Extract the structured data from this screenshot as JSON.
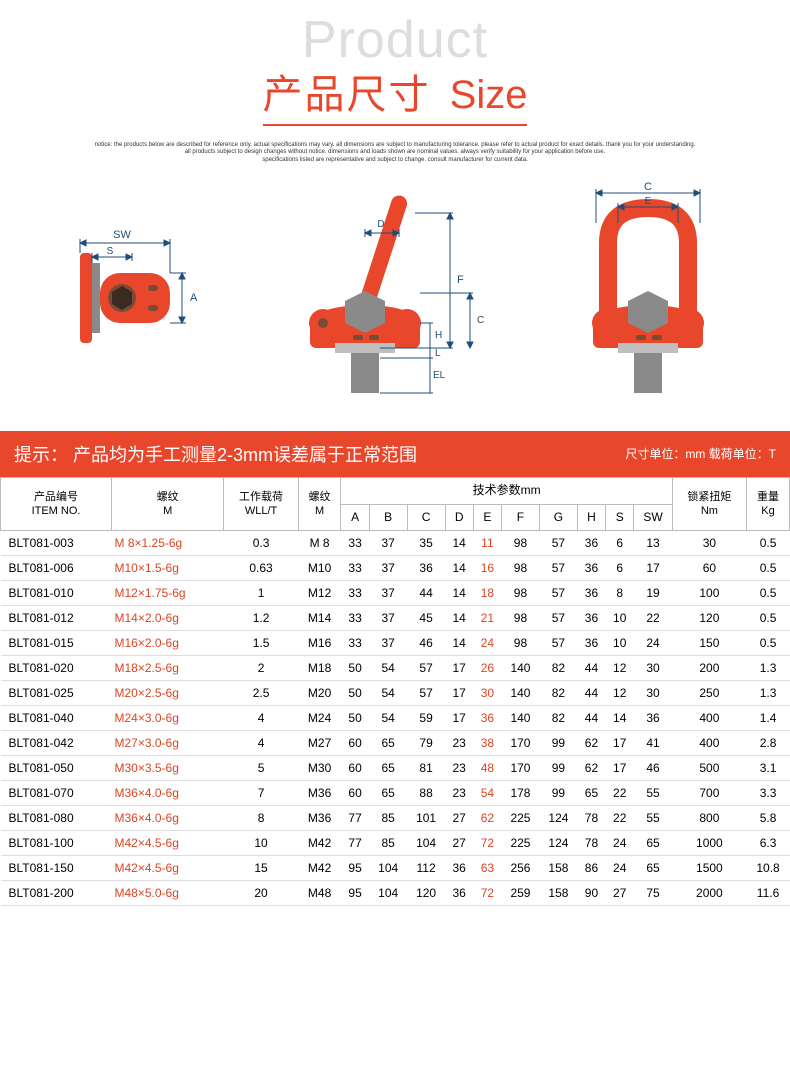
{
  "header": {
    "product_word": "Product",
    "title_cn": "产品尺寸",
    "title_en": "Size"
  },
  "desc": [
    "notice: the products below are described for reference only. actual specifications may vary. all dimensions are subject to manufacturing tolerance. please refer to actual product for exact details. thank you for your understanding.",
    "all products subject to design changes without notice. dimensions and loads shown are nominal values. always verify suitability for your application before use.",
    "specifications listed are representative and subject to change. consult manufacturer for current data."
  ],
  "dim_labels": {
    "sw": "SW",
    "s": "S",
    "a": "A",
    "d": "D",
    "f": "F",
    "h": "H",
    "l": "L",
    "el": "EL",
    "c_upper": "C",
    "c_lower": "C",
    "e": "E"
  },
  "notice": {
    "tip_label": "提示：",
    "text": "产品均为手工测量2-3mm误差属于正常范围",
    "units": "尺寸单位：mm 载荷单位：T"
  },
  "columns": {
    "itemno": {
      "cn": "产品编号",
      "en": "ITEM NO."
    },
    "thread": {
      "cn": "螺纹",
      "en": "M"
    },
    "wll": {
      "cn": "工作载荷",
      "en": "WLL/T"
    },
    "m2": {
      "cn": "螺纹",
      "en": "M"
    },
    "tech_group": "技术参数mm",
    "tech": [
      "A",
      "B",
      "C",
      "D",
      "E",
      "F",
      "G",
      "H",
      "S",
      "SW"
    ],
    "torque": {
      "cn": "锁紧扭矩",
      "en": "Nm"
    },
    "weight": {
      "cn": "重量",
      "en": "Kg"
    }
  },
  "rows": [
    {
      "sep": true,
      "item": "BLT081-003",
      "thread": "M 8×1.25-6g",
      "wll": "0.3",
      "m": "M 8",
      "a": "33",
      "b": "37",
      "c": "35",
      "d": "14",
      "e": "11",
      "f": "98",
      "g": "57",
      "h": "36",
      "s": "6",
      "sw": "13",
      "nm": "30",
      "kg": "0.5"
    },
    {
      "sep": false,
      "item": "BLT081-006",
      "thread": "M10×1.5-6g",
      "wll": "0.63",
      "m": "M10",
      "a": "33",
      "b": "37",
      "c": "36",
      "d": "14",
      "e": "16",
      "f": "98",
      "g": "57",
      "h": "36",
      "s": "6",
      "sw": "17",
      "nm": "60",
      "kg": "0.5"
    },
    {
      "sep": false,
      "item": "BLT081-010",
      "thread": "M12×1.75-6g",
      "wll": "1",
      "m": "M12",
      "a": "33",
      "b": "37",
      "c": "44",
      "d": "14",
      "e": "18",
      "f": "98",
      "g": "57",
      "h": "36",
      "s": "8",
      "sw": "19",
      "nm": "100",
      "kg": "0.5"
    },
    {
      "sep": false,
      "item": "BLT081-012",
      "thread": "M14×2.0-6g",
      "wll": "1.2",
      "m": "M14",
      "a": "33",
      "b": "37",
      "c": "45",
      "d": "14",
      "e": "21",
      "f": "98",
      "g": "57",
      "h": "36",
      "s": "10",
      "sw": "22",
      "nm": "120",
      "kg": "0.5"
    },
    {
      "sep": true,
      "item": "BLT081-015",
      "thread": "M16×2.0-6g",
      "wll": "1.5",
      "m": "M16",
      "a": "33",
      "b": "37",
      "c": "46",
      "d": "14",
      "e": "24",
      "f": "98",
      "g": "57",
      "h": "36",
      "s": "10",
      "sw": "24",
      "nm": "150",
      "kg": "0.5"
    },
    {
      "sep": false,
      "item": "BLT081-020",
      "thread": "M18×2.5-6g",
      "wll": "2",
      "m": "M18",
      "a": "50",
      "b": "54",
      "c": "57",
      "d": "17",
      "e": "26",
      "f": "140",
      "g": "82",
      "h": "44",
      "s": "12",
      "sw": "30",
      "nm": "200",
      "kg": "1.3"
    },
    {
      "sep": false,
      "item": "BLT081-025",
      "thread": "M20×2.5-6g",
      "wll": "2.5",
      "m": "M20",
      "a": "50",
      "b": "54",
      "c": "57",
      "d": "17",
      "e": "30",
      "f": "140",
      "g": "82",
      "h": "44",
      "s": "12",
      "sw": "30",
      "nm": "250",
      "kg": "1.3"
    },
    {
      "sep": false,
      "item": "BLT081-040",
      "thread": "M24×3.0-6g",
      "wll": "4",
      "m": "M24",
      "a": "50",
      "b": "54",
      "c": "59",
      "d": "17",
      "e": "36",
      "f": "140",
      "g": "82",
      "h": "44",
      "s": "14",
      "sw": "36",
      "nm": "400",
      "kg": "1.4"
    },
    {
      "sep": true,
      "item": "BLT081-042",
      "thread": "M27×3.0-6g",
      "wll": "4",
      "m": "M27",
      "a": "60",
      "b": "65",
      "c": "79",
      "d": "23",
      "e": "38",
      "f": "170",
      "g": "99",
      "h": "62",
      "s": "17",
      "sw": "41",
      "nm": "400",
      "kg": "2.8"
    },
    {
      "sep": false,
      "item": "BLT081-050",
      "thread": "M30×3.5-6g",
      "wll": "5",
      "m": "M30",
      "a": "60",
      "b": "65",
      "c": "81",
      "d": "23",
      "e": "48",
      "f": "170",
      "g": "99",
      "h": "62",
      "s": "17",
      "sw": "46",
      "nm": "500",
      "kg": "3.1"
    },
    {
      "sep": false,
      "item": "BLT081-070",
      "thread": "M36×4.0-6g",
      "wll": "7",
      "m": "M36",
      "a": "60",
      "b": "65",
      "c": "88",
      "d": "23",
      "e": "54",
      "f": "178",
      "g": "99",
      "h": "65",
      "s": "22",
      "sw": "55",
      "nm": "700",
      "kg": "3.3"
    },
    {
      "sep": false,
      "item": "BLT081-080",
      "thread": "M36×4.0-6g",
      "wll": "8",
      "m": "M36",
      "a": "77",
      "b": "85",
      "c": "101",
      "d": "27",
      "e": "62",
      "f": "225",
      "g": "124",
      "h": "78",
      "s": "22",
      "sw": "55",
      "nm": "800",
      "kg": "5.8"
    },
    {
      "sep": true,
      "item": "BLT081-100",
      "thread": "M42×4.5-6g",
      "wll": "10",
      "m": "M42",
      "a": "77",
      "b": "85",
      "c": "104",
      "d": "27",
      "e": "72",
      "f": "225",
      "g": "124",
      "h": "78",
      "s": "24",
      "sw": "65",
      "nm": "1000",
      "kg": "6.3"
    },
    {
      "sep": false,
      "item": "BLT081-150",
      "thread": "M42×4.5-6g",
      "wll": "15",
      "m": "M42",
      "a": "95",
      "b": "104",
      "c": "112",
      "d": "36",
      "e": "63",
      "f": "256",
      "g": "158",
      "h": "86",
      "s": "24",
      "sw": "65",
      "nm": "1500",
      "kg": "10.8"
    },
    {
      "sep": false,
      "item": "BLT081-200",
      "thread": "M48×5.0-6g",
      "wll": "20",
      "m": "M48",
      "a": "95",
      "b": "104",
      "c": "120",
      "d": "36",
      "e": "72",
      "f": "259",
      "g": "158",
      "h": "90",
      "s": "27",
      "sw": "75",
      "nm": "2000",
      "kg": "11.6"
    }
  ],
  "style": {
    "brand_color": "#e9472c",
    "product_gray": "#ddd",
    "table_border": "#bbb",
    "row_border": "#ddd",
    "sep_border": "#888",
    "red_text": "#d42",
    "fig_orange": "#e9472c",
    "fig_gray": "#8a8a8a",
    "fig_navy": "#1f4e79"
  }
}
